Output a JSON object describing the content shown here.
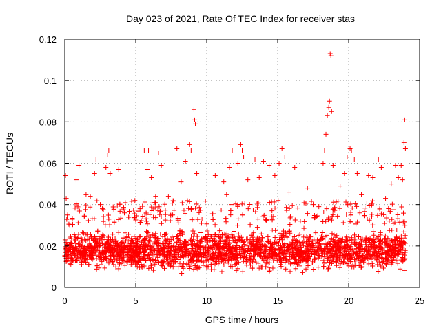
{
  "chart_data": {
    "type": "scatter",
    "title": "Day 023 of 2021, Rate Of TEC Index for receiver stas",
    "xlabel": "GPS time / hours",
    "ylabel": "ROTI / TECUs",
    "xlim": [
      0,
      25
    ],
    "ylim": [
      0,
      0.12
    ],
    "x_ticks": [
      "0",
      "5",
      "10",
      "15",
      "20",
      "25"
    ],
    "y_ticks": [
      "0",
      "0.02",
      "0.04",
      "0.06",
      "0.08",
      "0.1",
      "0.12"
    ],
    "grid": true,
    "marker": "+",
    "color": "#ff0000",
    "series": [
      {
        "name": "ROTI",
        "points": [
          [
            0.05,
            0.054
          ],
          [
            0.1,
            0.043
          ],
          [
            0.2,
            0.035
          ],
          [
            0.8,
            0.052
          ],
          [
            1.0,
            0.059
          ],
          [
            1.5,
            0.045
          ],
          [
            1.8,
            0.044
          ],
          [
            2.1,
            0.055
          ],
          [
            2.2,
            0.062
          ],
          [
            2.5,
            0.04
          ],
          [
            2.9,
            0.058
          ],
          [
            3.0,
            0.064
          ],
          [
            3.1,
            0.066
          ],
          [
            3.2,
            0.055
          ],
          [
            3.8,
            0.057
          ],
          [
            4.2,
            0.036
          ],
          [
            5.3,
            0.038
          ],
          [
            5.6,
            0.066
          ],
          [
            5.8,
            0.057
          ],
          [
            5.9,
            0.066
          ],
          [
            6.1,
            0.053
          ],
          [
            6.4,
            0.044
          ],
          [
            6.6,
            0.065
          ],
          [
            6.8,
            0.059
          ],
          [
            7.3,
            0.044
          ],
          [
            7.6,
            0.035
          ],
          [
            7.9,
            0.067
          ],
          [
            8.2,
            0.051
          ],
          [
            8.5,
            0.061
          ],
          [
            8.8,
            0.069
          ],
          [
            8.9,
            0.066
          ],
          [
            9.1,
            0.086
          ],
          [
            9.15,
            0.081
          ],
          [
            9.2,
            0.079
          ],
          [
            9.3,
            0.055
          ],
          [
            10.6,
            0.054
          ],
          [
            11.2,
            0.051
          ],
          [
            11.4,
            0.045
          ],
          [
            11.6,
            0.058
          ],
          [
            11.8,
            0.066
          ],
          [
            12.2,
            0.06
          ],
          [
            12.4,
            0.069
          ],
          [
            12.5,
            0.066
          ],
          [
            12.6,
            0.063
          ],
          [
            12.9,
            0.052
          ],
          [
            13.4,
            0.062
          ],
          [
            13.7,
            0.053
          ],
          [
            14.0,
            0.061
          ],
          [
            14.4,
            0.059
          ],
          [
            14.8,
            0.054
          ],
          [
            15.1,
            0.06
          ],
          [
            15.3,
            0.067
          ],
          [
            15.5,
            0.063
          ],
          [
            15.8,
            0.046
          ],
          [
            16.2,
            0.058
          ],
          [
            16.6,
            0.032
          ],
          [
            17.1,
            0.048
          ],
          [
            17.5,
            0.04
          ],
          [
            17.9,
            0.039
          ],
          [
            18.2,
            0.06
          ],
          [
            18.3,
            0.066
          ],
          [
            18.4,
            0.074
          ],
          [
            18.5,
            0.083
          ],
          [
            18.6,
            0.087
          ],
          [
            18.65,
            0.09
          ],
          [
            18.7,
            0.113
          ],
          [
            18.75,
            0.112
          ],
          [
            18.8,
            0.085
          ],
          [
            18.9,
            0.059
          ],
          [
            19.4,
            0.049
          ],
          [
            19.7,
            0.055
          ],
          [
            19.9,
            0.063
          ],
          [
            20.1,
            0.067
          ],
          [
            20.2,
            0.066
          ],
          [
            20.4,
            0.062
          ],
          [
            20.6,
            0.055
          ],
          [
            20.9,
            0.045
          ],
          [
            21.4,
            0.054
          ],
          [
            21.7,
            0.053
          ],
          [
            22.1,
            0.062
          ],
          [
            22.3,
            0.058
          ],
          [
            22.6,
            0.043
          ],
          [
            23.0,
            0.05
          ],
          [
            23.3,
            0.059
          ],
          [
            23.5,
            0.053
          ],
          [
            23.7,
            0.059
          ],
          [
            23.8,
            0.052
          ],
          [
            23.9,
            0.07
          ],
          [
            23.95,
            0.081
          ],
          [
            24.0,
            0.067
          ]
        ]
      }
    ],
    "bulk_band": {
      "x_range": [
        0,
        24
      ],
      "y_min": 0.006,
      "y_max": 0.03,
      "density": 3200
    }
  }
}
